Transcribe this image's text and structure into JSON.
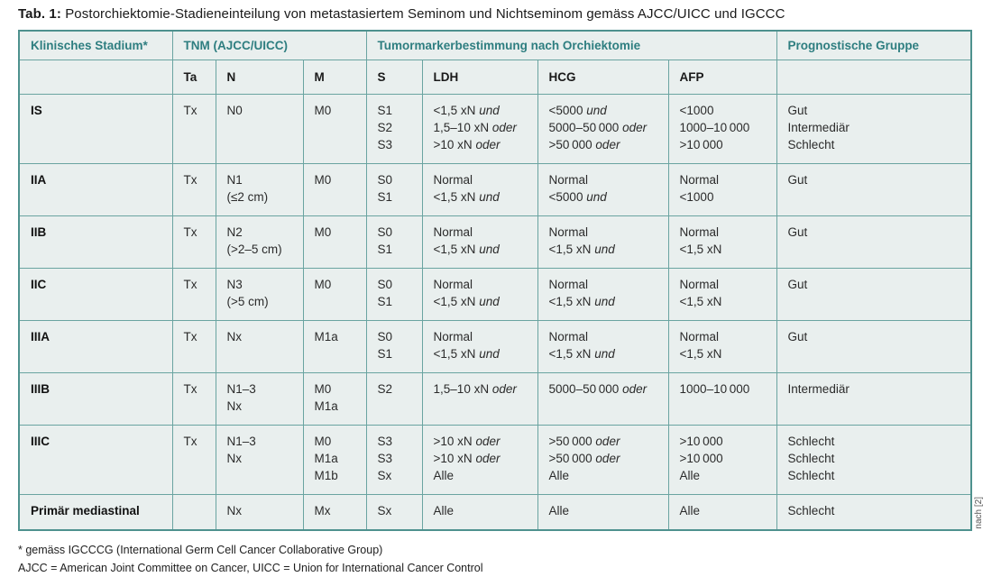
{
  "title": {
    "label": "Tab. 1:",
    "text": " Postorchiektomie-Stadieneinteilung von metastasiertem Seminom und Nichtseminom gemäss AJCC/UICC und IGCCC"
  },
  "colors": {
    "accent_teal_text": "#2e7e80",
    "table_border": "#4e918e",
    "table_background": "#e9efee"
  },
  "table": {
    "group_headers": [
      "Klinisches Stadium*",
      "TNM (AJCC/UICC)",
      "Tumormarkerbestimmung nach Orchiektomie",
      "Prognostische Gruppe"
    ],
    "sub_headers": [
      "",
      "Ta",
      "N",
      "M",
      "S",
      "LDH",
      "HCG",
      "AFP",
      ""
    ],
    "rows": [
      {
        "stage": "IS",
        "ta": [
          "Tx"
        ],
        "n": [
          "N0"
        ],
        "m": [
          "M0"
        ],
        "s": [
          "S1",
          "S2",
          "S3"
        ],
        "ldh": [
          "<1,5 xN und",
          "1,5–10 xN oder",
          ">10 xN oder"
        ],
        "hcg": [
          "<5000 und",
          "5000–50 000 oder",
          ">50 000 oder"
        ],
        "afp": [
          "<1000",
          "1000–10 000",
          ">10 000"
        ],
        "group": [
          "Gut",
          "Intermediär",
          "Schlecht"
        ]
      },
      {
        "stage": "IIA",
        "ta": [
          "Tx"
        ],
        "n": [
          "N1",
          "(≤2 cm)"
        ],
        "m": [
          "M0"
        ],
        "s": [
          "S0",
          "S1"
        ],
        "ldh": [
          "Normal",
          "<1,5 xN und"
        ],
        "hcg": [
          "Normal",
          "<5000 und"
        ],
        "afp": [
          "Normal",
          "<1000"
        ],
        "group": [
          "Gut"
        ]
      },
      {
        "stage": "IIB",
        "ta": [
          "Tx"
        ],
        "n": [
          "N2",
          "(>2–5 cm)"
        ],
        "m": [
          "M0"
        ],
        "s": [
          "S0",
          "S1"
        ],
        "ldh": [
          "Normal",
          "<1,5 xN und"
        ],
        "hcg": [
          "Normal",
          "<1,5 xN und"
        ],
        "afp": [
          "Normal",
          "<1,5 xN"
        ],
        "group": [
          "Gut"
        ]
      },
      {
        "stage": "IIC",
        "ta": [
          "Tx"
        ],
        "n": [
          "N3",
          "(>5 cm)"
        ],
        "m": [
          "M0"
        ],
        "s": [
          "S0",
          "S1"
        ],
        "ldh": [
          "Normal",
          "<1,5 xN und"
        ],
        "hcg": [
          "Normal",
          "<1,5 xN und"
        ],
        "afp": [
          "Normal",
          "<1,5 xN"
        ],
        "group": [
          "Gut"
        ]
      },
      {
        "stage": "IIIA",
        "ta": [
          "Tx"
        ],
        "n": [
          "Nx"
        ],
        "m": [
          "M1a"
        ],
        "s": [
          "S0",
          "S1"
        ],
        "ldh": [
          "Normal",
          "<1,5 xN und"
        ],
        "hcg": [
          "Normal",
          "<1,5 xN und"
        ],
        "afp": [
          "Normal",
          "<1,5 xN"
        ],
        "group": [
          "Gut"
        ]
      },
      {
        "stage": "IIIB",
        "ta": [
          "Tx"
        ],
        "n": [
          "N1–3",
          "Nx"
        ],
        "m": [
          "M0",
          "M1a"
        ],
        "s": [
          "S2"
        ],
        "ldh": [
          "1,5–10 xN oder"
        ],
        "hcg": [
          "5000–50 000 oder"
        ],
        "afp": [
          "1000–10 000"
        ],
        "group": [
          "Intermediär"
        ]
      },
      {
        "stage": "IIIC",
        "ta": [
          "Tx"
        ],
        "n": [
          "N1–3",
          "Nx"
        ],
        "m": [
          "M0",
          "M1a",
          "M1b"
        ],
        "s": [
          "S3",
          "S3",
          "Sx"
        ],
        "ldh": [
          ">10 xN oder",
          ">10 xN oder",
          "Alle"
        ],
        "hcg": [
          ">50 000 oder",
          ">50 000 oder",
          "Alle"
        ],
        "afp": [
          ">10 000",
          ">10 000",
          "Alle"
        ],
        "group": [
          "Schlecht",
          "Schlecht",
          "Schlecht"
        ]
      },
      {
        "stage": "Primär mediastinal",
        "ta": [
          ""
        ],
        "n": [
          "Nx"
        ],
        "m": [
          "Mx"
        ],
        "s": [
          "Sx"
        ],
        "ldh": [
          "Alle"
        ],
        "hcg": [
          "Alle"
        ],
        "afp": [
          "Alle"
        ],
        "group": [
          "Schlecht"
        ]
      }
    ]
  },
  "side_note": "nach [2]",
  "footnotes": [
    "* gemäss IGCCCG (International Germ Cell Cancer Collaborative Group)",
    "AJCC = American Joint Committee on Cancer, UICC = Union for International Cancer Control"
  ]
}
